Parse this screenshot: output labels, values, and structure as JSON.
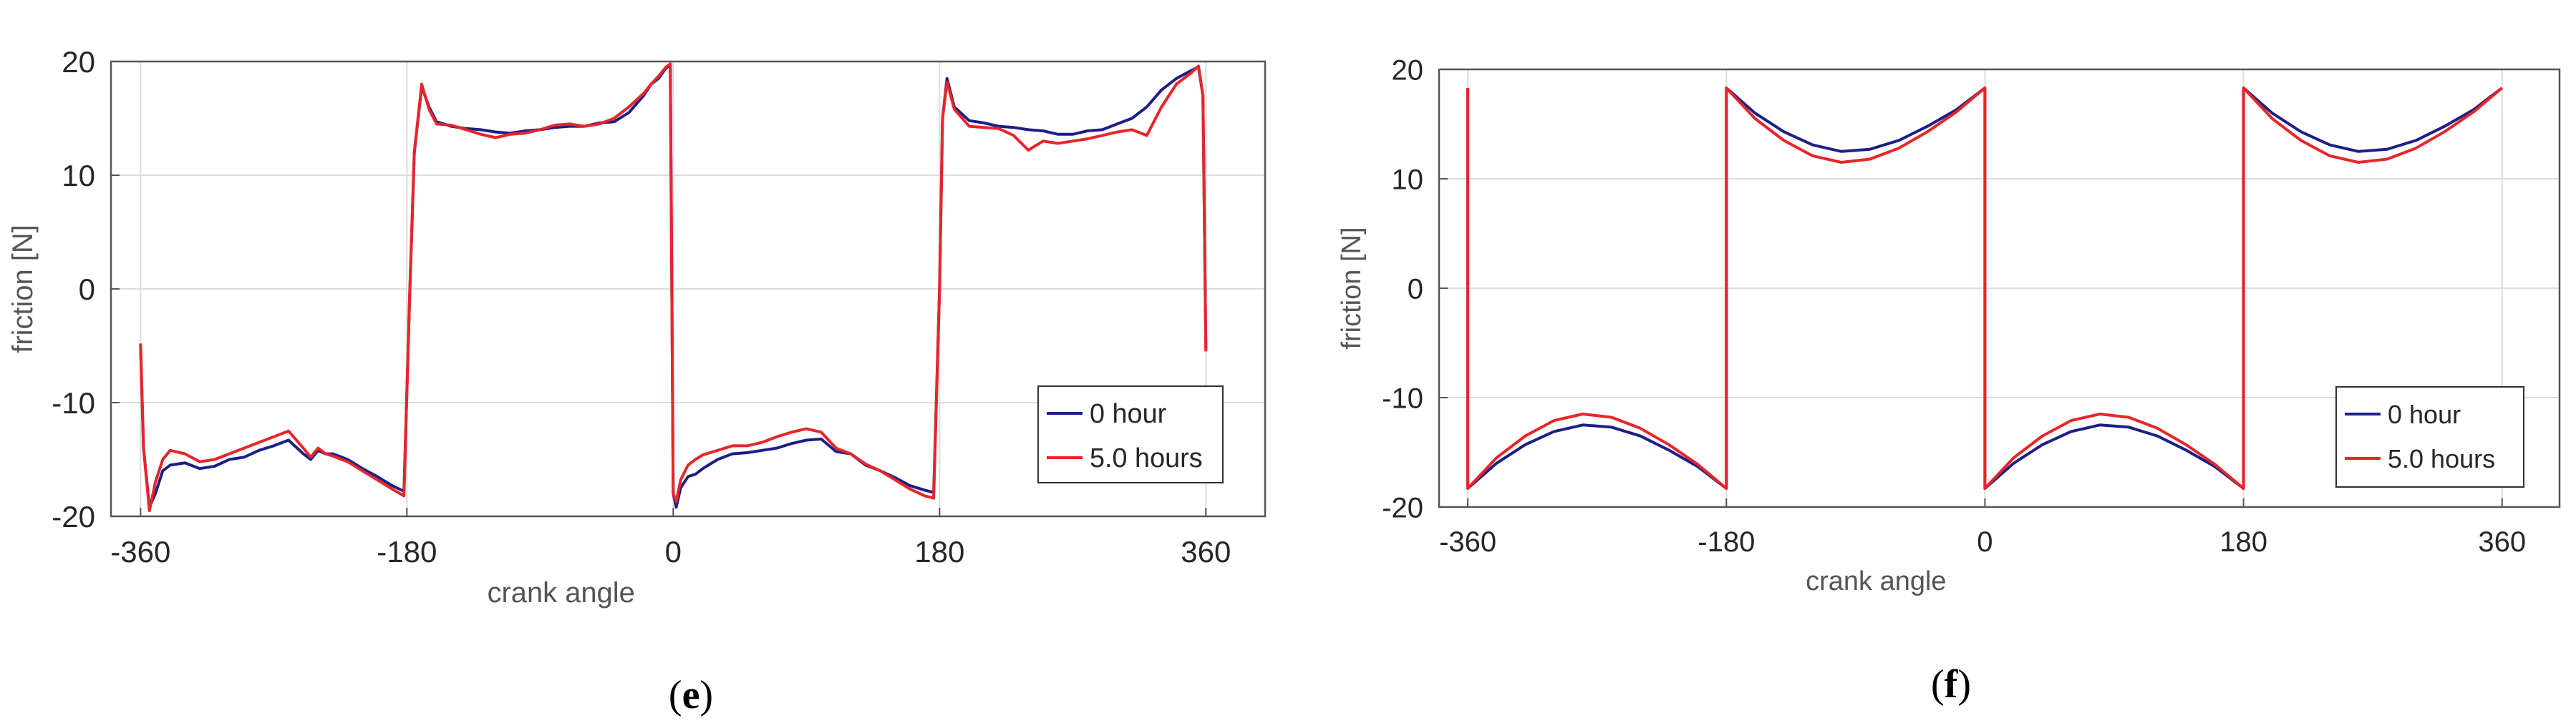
{
  "chart_data": [
    {
      "type": "line",
      "panel_label": {
        "open": "(",
        "letter": "e",
        "close": ")"
      },
      "xlabel": "crank angle",
      "ylabel": "friction [N]",
      "xlim": [
        -380,
        400
      ],
      "ylim": [
        -20,
        20
      ],
      "xticks": [
        -360,
        -180,
        0,
        180,
        360
      ],
      "yticks": [
        20,
        10,
        0,
        -10,
        -20
      ],
      "grid": true,
      "legend_position": "lower-right",
      "series": [
        {
          "name": "0 hour",
          "color": "#1c1f86",
          "x": [
            -360,
            -358,
            -354,
            -350,
            -345,
            -340,
            -330,
            -320,
            -310,
            -300,
            -290,
            -280,
            -270,
            -260,
            -250,
            -245,
            -240,
            -235,
            -230,
            -220,
            -210,
            -200,
            -190,
            -182,
            -178,
            -175,
            -170,
            -165,
            -160,
            -150,
            -140,
            -130,
            -120,
            -110,
            -100,
            -90,
            -80,
            -70,
            -60,
            -50,
            -40,
            -30,
            -20,
            -15,
            -10,
            -5,
            -2,
            0,
            2,
            5,
            10,
            15,
            20,
            30,
            40,
            50,
            60,
            70,
            80,
            90,
            100,
            110,
            120,
            130,
            140,
            150,
            160,
            170,
            176,
            180,
            182,
            185,
            190,
            200,
            210,
            220,
            230,
            240,
            250,
            260,
            270,
            280,
            290,
            300,
            310,
            320,
            330,
            340,
            350,
            355,
            358,
            360
          ],
          "y": [
            -5,
            -14,
            -19.2,
            -18,
            -16,
            -15.5,
            -15.3,
            -15.8,
            -15.6,
            -15,
            -14.8,
            -14.2,
            -13.8,
            -13.3,
            -14.5,
            -15,
            -14.2,
            -14.5,
            -14.5,
            -15,
            -15.8,
            -16.5,
            -17.3,
            -17.8,
            0,
            12,
            17.8,
            16,
            14.7,
            14.3,
            14.1,
            14.0,
            13.8,
            13.7,
            13.9,
            14.0,
            14.2,
            14.3,
            14.3,
            14.6,
            14.7,
            15.5,
            17.0,
            18.0,
            18.5,
            19.4,
            19.7,
            -18,
            -19.2,
            -17.5,
            -16.5,
            -16.3,
            -15.8,
            -15.0,
            -14.5,
            -14.4,
            -14.2,
            -14.0,
            -13.6,
            -13.3,
            -13.2,
            -14.3,
            -14.5,
            -15.5,
            -16.0,
            -16.6,
            -17.3,
            -17.7,
            -17.9,
            0,
            15,
            18.5,
            16.0,
            14.8,
            14.6,
            14.3,
            14.2,
            14.0,
            13.9,
            13.6,
            13.6,
            13.9,
            14.0,
            14.5,
            15.0,
            16.0,
            17.5,
            18.5,
            19.2,
            19.5,
            17,
            -5.3
          ]
        },
        {
          "name": "5.0 hours",
          "color": "#e8252a",
          "x": [
            -360,
            -358,
            -354,
            -350,
            -345,
            -340,
            -330,
            -320,
            -310,
            -300,
            -290,
            -280,
            -270,
            -260,
            -250,
            -245,
            -240,
            -235,
            -230,
            -220,
            -210,
            -200,
            -190,
            -182,
            -178,
            -175,
            -170,
            -165,
            -160,
            -150,
            -140,
            -130,
            -120,
            -110,
            -100,
            -90,
            -80,
            -70,
            -60,
            -50,
            -40,
            -30,
            -20,
            -15,
            -10,
            -5,
            -2,
            0,
            2,
            5,
            10,
            15,
            20,
            30,
            40,
            50,
            60,
            70,
            80,
            90,
            100,
            110,
            120,
            130,
            140,
            150,
            160,
            170,
            176,
            180,
            182,
            185,
            190,
            200,
            210,
            220,
            230,
            240,
            250,
            260,
            270,
            280,
            290,
            300,
            310,
            320,
            330,
            340,
            350,
            355,
            358,
            360
          ],
          "y": [
            -4.8,
            -14,
            -19.5,
            -17,
            -15,
            -14.2,
            -14.5,
            -15.2,
            -15.0,
            -14.5,
            -14.0,
            -13.5,
            -13.0,
            -12.5,
            -14.0,
            -14.8,
            -14.0,
            -14.5,
            -14.7,
            -15.2,
            -16.0,
            -16.8,
            -17.6,
            -18.2,
            0,
            12,
            18,
            15.8,
            14.5,
            14.4,
            14.0,
            13.6,
            13.3,
            13.6,
            13.7,
            14.0,
            14.4,
            14.5,
            14.3,
            14.5,
            15.0,
            16.0,
            17.2,
            18.0,
            18.7,
            19.5,
            19.8,
            -18,
            -18.7,
            -16.8,
            -15.5,
            -15.0,
            -14.6,
            -14.2,
            -13.8,
            -13.8,
            -13.5,
            -13.0,
            -12.6,
            -12.3,
            -12.6,
            -14.0,
            -14.5,
            -15.4,
            -16.0,
            -16.8,
            -17.6,
            -18.2,
            -18.4,
            0,
            15,
            18.2,
            15.8,
            14.3,
            14.2,
            14.1,
            13.5,
            12.2,
            13.0,
            12.8,
            13.0,
            13.2,
            13.5,
            13.8,
            14.0,
            13.5,
            16.0,
            18.0,
            19.0,
            19.6,
            17,
            -5.5
          ]
        }
      ]
    },
    {
      "type": "line",
      "panel_label": {
        "open": "(",
        "letter": "f",
        "close": ")"
      },
      "xlabel": "crank angle",
      "ylabel": "friction [N]",
      "xlim": [
        -380,
        400
      ],
      "ylim": [
        -20,
        20
      ],
      "xticks": [
        -360,
        -180,
        0,
        180,
        360
      ],
      "yticks": [
        20,
        10,
        0,
        -10,
        -20
      ],
      "grid": true,
      "legend_position": "lower-right",
      "series": [
        {
          "name": "0 hour",
          "color": "#1c1f86",
          "x": [
            -360,
            -360,
            -340,
            -320,
            -300,
            -280,
            -260,
            -240,
            -220,
            -200,
            -180,
            -180,
            -160,
            -140,
            -120,
            -100,
            -80,
            -60,
            -40,
            -20,
            0,
            0,
            20,
            40,
            60,
            80,
            100,
            120,
            140,
            160,
            180,
            180,
            200,
            220,
            240,
            260,
            280,
            300,
            320,
            340,
            360
          ],
          "y": [
            18.3,
            -18.3,
            -16.0,
            -14.3,
            -13.1,
            -12.5,
            -12.7,
            -13.5,
            -14.8,
            -16.3,
            -18.3,
            18.3,
            16.0,
            14.3,
            13.1,
            12.5,
            12.7,
            13.5,
            14.8,
            16.3,
            18.3,
            -18.3,
            -16.0,
            -14.3,
            -13.1,
            -12.5,
            -12.7,
            -13.5,
            -14.8,
            -16.3,
            -18.3,
            18.3,
            16.0,
            14.3,
            13.1,
            12.5,
            12.7,
            13.5,
            14.8,
            16.3,
            18.3
          ]
        },
        {
          "name": "5.0 hours",
          "color": "#e8252a",
          "x": [
            -360,
            -360,
            -340,
            -320,
            -300,
            -280,
            -260,
            -240,
            -220,
            -200,
            -180,
            -180,
            -160,
            -140,
            -120,
            -100,
            -80,
            -60,
            -40,
            -20,
            0,
            0,
            20,
            40,
            60,
            80,
            100,
            120,
            140,
            160,
            180,
            180,
            200,
            220,
            240,
            260,
            280,
            300,
            320,
            340,
            360
          ],
          "y": [
            18.3,
            -18.3,
            -15.5,
            -13.5,
            -12.1,
            -11.5,
            -11.8,
            -12.8,
            -14.3,
            -16.1,
            -18.3,
            18.3,
            15.5,
            13.5,
            12.1,
            11.5,
            11.8,
            12.8,
            14.3,
            16.1,
            18.3,
            -18.3,
            -15.5,
            -13.5,
            -12.1,
            -11.5,
            -11.8,
            -12.8,
            -14.3,
            -16.1,
            -18.3,
            18.3,
            15.5,
            13.5,
            12.1,
            11.5,
            11.8,
            12.8,
            14.3,
            16.1,
            18.3
          ]
        }
      ]
    }
  ]
}
